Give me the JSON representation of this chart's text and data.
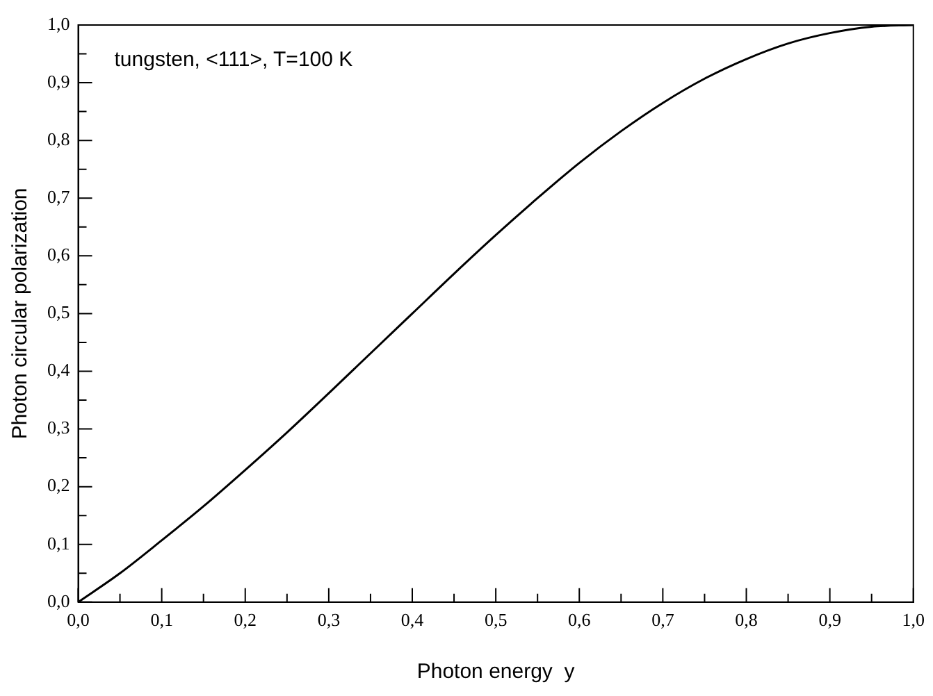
{
  "chart_data": {
    "type": "line",
    "xlabel": "Photon energy  y",
    "ylabel": "Photon circular polarization",
    "x": [
      0,
      0.05,
      0.1,
      0.15,
      0.2,
      0.25,
      0.3,
      0.35,
      0.4,
      0.45,
      0.5,
      0.55,
      0.6,
      0.65,
      0.7,
      0.75,
      0.8,
      0.85,
      0.9,
      0.95,
      1.0
    ],
    "series": [
      {
        "color": "#000000",
        "values": [
          0,
          0.05,
          0.107,
          0.166,
          0.229,
          0.294,
          0.362,
          0.431,
          0.5,
          0.569,
          0.636,
          0.7,
          0.761,
          0.816,
          0.865,
          0.907,
          0.941,
          0.968,
          0.986,
          0.997,
          1.0
        ]
      }
    ],
    "xlim": [
      0,
      1
    ],
    "ylim": [
      0,
      1
    ],
    "xticks": [
      {
        "value": 0,
        "label": "0,0"
      },
      {
        "value": 0.05,
        "label": null
      },
      {
        "value": 0.1,
        "label": "0,1"
      },
      {
        "value": 0.15,
        "label": null
      },
      {
        "value": 0.2,
        "label": "0,2"
      },
      {
        "value": 0.25,
        "label": null
      },
      {
        "value": 0.3,
        "label": "0,3"
      },
      {
        "value": 0.35,
        "label": null
      },
      {
        "value": 0.4,
        "label": "0,4"
      },
      {
        "value": 0.45,
        "label": null
      },
      {
        "value": 0.5,
        "label": "0,5"
      },
      {
        "value": 0.55,
        "label": null
      },
      {
        "value": 0.6,
        "label": "0,6"
      },
      {
        "value": 0.65,
        "label": null
      },
      {
        "value": 0.7,
        "label": "0,7"
      },
      {
        "value": 0.75,
        "label": null
      },
      {
        "value": 0.8,
        "label": "0,8"
      },
      {
        "value": 0.85,
        "label": null
      },
      {
        "value": 0.9,
        "label": "0,9"
      },
      {
        "value": 0.95,
        "label": null
      },
      {
        "value": 1,
        "label": "1,0"
      }
    ],
    "yticks": [
      {
        "value": 0,
        "label": "0,0"
      },
      {
        "value": 0.05,
        "label": null
      },
      {
        "value": 0.1,
        "label": "0,1"
      },
      {
        "value": 0.15,
        "label": null
      },
      {
        "value": 0.2,
        "label": "0,2"
      },
      {
        "value": 0.25,
        "label": null
      },
      {
        "value": 0.3,
        "label": "0,3"
      },
      {
        "value": 0.35,
        "label": null
      },
      {
        "value": 0.4,
        "label": "0,4"
      },
      {
        "value": 0.45,
        "label": null
      },
      {
        "value": 0.5,
        "label": "0,5"
      },
      {
        "value": 0.55,
        "label": null
      },
      {
        "value": 0.6,
        "label": "0,6"
      },
      {
        "value": 0.65,
        "label": null
      },
      {
        "value": 0.7,
        "label": "0,7"
      },
      {
        "value": 0.75,
        "label": null
      },
      {
        "value": 0.8,
        "label": "0,8"
      },
      {
        "value": 0.85,
        "label": null
      },
      {
        "value": 0.9,
        "label": "0,9"
      },
      {
        "value": 0.95,
        "label": null
      },
      {
        "value": 1,
        "label": "1,0"
      }
    ],
    "annotations": [
      "tungsten, <111>, T=100 K"
    ],
    "grid": false,
    "legend": false,
    "marker": "none",
    "line_style": "solid"
  }
}
